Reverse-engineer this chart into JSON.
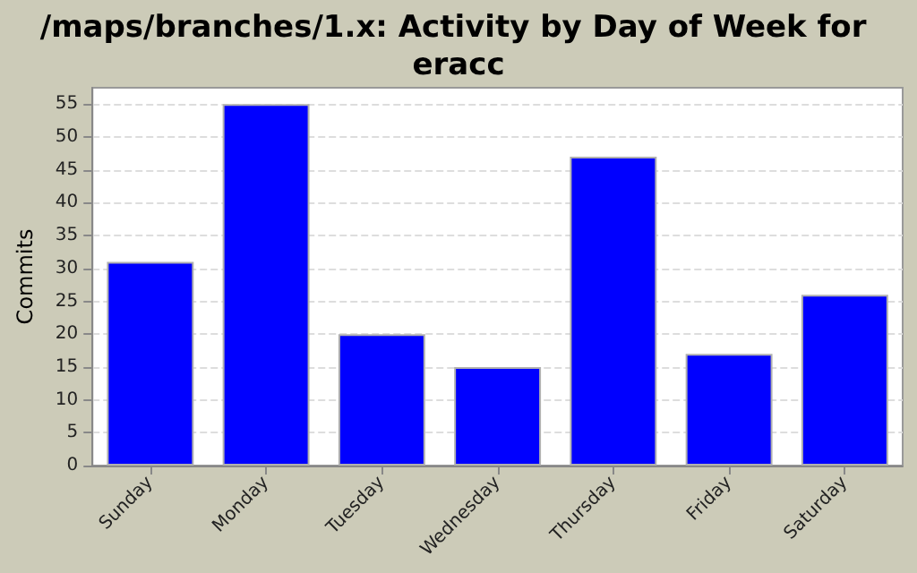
{
  "chart_data": {
    "type": "bar",
    "title": "/maps/branches/1.x: Activity by Day of Week for eracc",
    "ylabel": "Commits",
    "categories": [
      "Sunday",
      "Monday",
      "Tuesday",
      "Wednesday",
      "Thursday",
      "Friday",
      "Saturday"
    ],
    "values": [
      31,
      55,
      20,
      15,
      47,
      17,
      26
    ],
    "color": "#0000ff",
    "ylim": [
      0,
      57.5
    ],
    "yticks": [
      0,
      5,
      10,
      15,
      20,
      25,
      30,
      35,
      40,
      45,
      50,
      55
    ],
    "grid": "y"
  }
}
